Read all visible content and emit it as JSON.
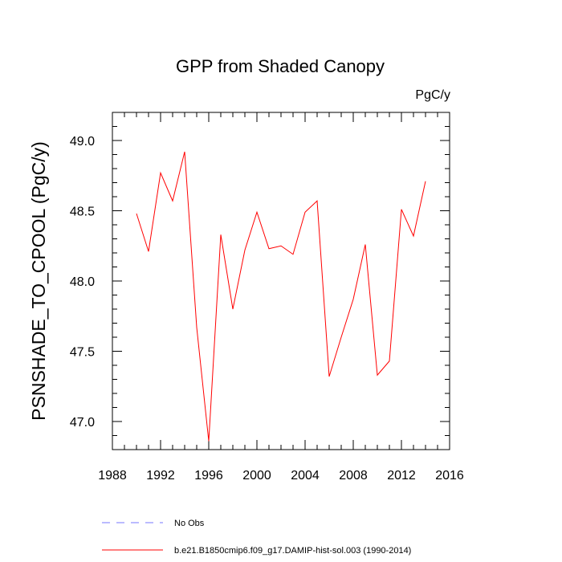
{
  "chart_data": {
    "type": "line",
    "title": "GPP from Shaded Canopy",
    "units": "PgC/y",
    "xlabel": "",
    "ylabel": "PSNSHADE_TO_CPOOL  (PgC/y)",
    "xlim": [
      1988,
      2016
    ],
    "ylim": [
      46.8,
      49.2
    ],
    "x_ticks": [
      1988,
      1992,
      1996,
      2000,
      2004,
      2008,
      2012,
      2016
    ],
    "x_minor_step": 1,
    "y_ticks": [
      47.0,
      47.5,
      48.0,
      48.5,
      49.0
    ],
    "y_tick_labels": [
      "47.0",
      "47.5",
      "48.0",
      "48.5",
      "49.0"
    ],
    "y_minor_step": 0.1,
    "grid": false,
    "legend_position": "bottom-left",
    "x": [
      1990,
      1991,
      1992,
      1993,
      1994,
      1995,
      1996,
      1997,
      1998,
      1999,
      2000,
      2001,
      2002,
      2003,
      2004,
      2005,
      2006,
      2007,
      2008,
      2009,
      2010,
      2011,
      2012,
      2013,
      2014
    ],
    "series": [
      {
        "name": "b.e21.B1850cmip6.f09_g17.DAMIP-hist-sol.003 (1990-2014)",
        "color": "#ff0000",
        "dash": "solid",
        "values": [
          48.48,
          48.21,
          48.77,
          48.57,
          48.92,
          47.67,
          46.86,
          48.33,
          47.8,
          48.22,
          48.49,
          48.23,
          48.25,
          48.19,
          48.49,
          48.57,
          47.32,
          47.6,
          47.87,
          48.26,
          47.33,
          47.43,
          48.51,
          48.32,
          48.71
        ]
      }
    ],
    "legend": [
      {
        "label": "No Obs",
        "color": "#7777ff",
        "dash": "dashed"
      },
      {
        "label": "b.e21.B1850cmip6.f09_g17.DAMIP-hist-sol.003 (1990-2014)",
        "color": "#ff0000",
        "dash": "solid"
      }
    ]
  }
}
